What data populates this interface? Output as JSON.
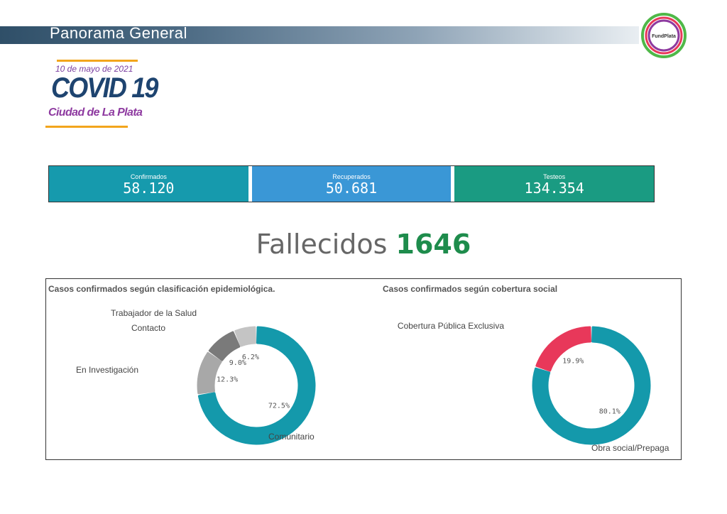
{
  "header": {
    "title": "Panorama General",
    "logo_text": "FundPlata"
  },
  "banner": {
    "date": "10 de mayo de 2021",
    "title": "COVID 19",
    "city": "Ciudad de La Plata"
  },
  "kpis": [
    {
      "label": "Confirmados",
      "value": "58.120",
      "color": "#169aad"
    },
    {
      "label": "Recuperados",
      "value": "50.681",
      "color": "#3a97d6"
    },
    {
      "label": "Testeos",
      "value": "134.354",
      "color": "#1a9b82"
    }
  ],
  "deaths": {
    "label": "Fallecidos",
    "value": "1646"
  },
  "chart_data": [
    {
      "type": "pie",
      "title": "Casos confirmados según clasificación epidemiológica.",
      "slices": [
        {
          "label": "Comunitario",
          "value": 72.5,
          "display": "72.5%",
          "color": "#1499ab"
        },
        {
          "label": "En Investigación",
          "value": 12.3,
          "display": "12.3%",
          "color": "#a8a8a8"
        },
        {
          "label": "Contacto",
          "value": 9.0,
          "display": "9.0%",
          "color": "#7a7a7a"
        },
        {
          "label": "Trabajador de la Salud",
          "value": 6.2,
          "display": "6.2%",
          "color": "#c4c4c4"
        }
      ]
    },
    {
      "type": "pie",
      "title": "Casos confirmados según cobertura social",
      "slices": [
        {
          "label": "Obra social/Prepaga",
          "value": 80.1,
          "display": "80.1%",
          "color": "#1499ab"
        },
        {
          "label": "Cobertura Pública Exclusiva",
          "value": 19.9,
          "display": "19.9%",
          "color": "#e8385a"
        }
      ]
    }
  ]
}
